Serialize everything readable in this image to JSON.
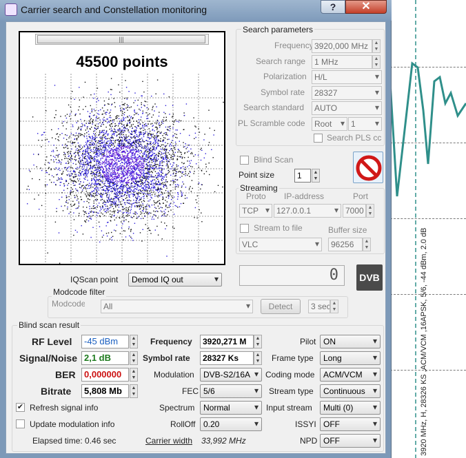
{
  "window": {
    "title": "Carrier search and Constellation monitoring",
    "help_label": "?",
    "close_label": "✕"
  },
  "background_window": {
    "label": "3920 MHz, H, 28326 KS ,ACM/VCM ,16APSK, 5/6, -44 dBm, 2.0 dB"
  },
  "constellation": {
    "points_label": "45500 points",
    "scroll_grip": "|||"
  },
  "search_params": {
    "title": "Search parameters",
    "frequency_label": "Frequency",
    "frequency_value": "3920,000 MHz",
    "search_range_label": "Search range",
    "search_range_value": "1 MHz",
    "polarization_label": "Polarization",
    "polarization_value": "H/L",
    "symbol_rate_label": "Symbol rate",
    "symbol_rate_value": "28327",
    "search_standard_label": "Search standard",
    "search_standard_value": "AUTO",
    "pl_scramble_label": "PL Scramble code",
    "pl_scramble_mode": "Root",
    "pl_scramble_value": "1",
    "search_pls_label": "Search PLS cc"
  },
  "blind_scan": {
    "label": "Blind Scan"
  },
  "point_size": {
    "label": "Point size",
    "value": "1"
  },
  "streaming": {
    "title": "Streaming",
    "proto_label": "Proto",
    "ip_label": "IP-address",
    "port_label": "Port",
    "proto_value": "TCP",
    "ip_value": "127.0.0.1",
    "port_value": "7000",
    "stream_to_file_label": "Stream to file",
    "buffer_size_label": "Buffer size",
    "player_value": "VLC",
    "buffer_size_value": "96256"
  },
  "iqscan": {
    "label": "IQScan point",
    "value": "Demod IQ out"
  },
  "counter_display": {
    "value": "0"
  },
  "dvb_logo": {
    "text": "DVB"
  },
  "modcode_filter": {
    "title": "Modcode filter",
    "modcode_label": "Modcode",
    "modcode_value": "All",
    "detect_label": "Detect",
    "timeout_value": "3 sec"
  },
  "blind_scan_result": {
    "title": "Blind scan result",
    "rf_level_label": "RF Level",
    "rf_level_value": "-45 dBm",
    "sn_label": "Signal/Noise",
    "sn_value": "2,1 dB",
    "ber_label": "BER",
    "ber_value": "0,000000",
    "bitrate_label": "Bitrate",
    "bitrate_value": "5,808 Mb",
    "refresh_label": "Refresh signal info",
    "refresh_checked": true,
    "update_modulation_label": "Update modulation info",
    "elapsed_label": "Elapsed time: 0.46 sec",
    "frequency_label": "Frequency",
    "frequency_value": "3920,271 M",
    "symbol_rate_label": "Symbol rate",
    "symbol_rate_value": "28327 Ks",
    "modulation_label": "Modulation",
    "modulation_value": "DVB-S2/16A",
    "fec_label": "FEC",
    "fec_value": "5/6",
    "spectrum_label": "Spectrum",
    "spectrum_value": "Normal",
    "rolloff_label": "RollOff",
    "rolloff_value": "0.20",
    "carrier_width_label": "Carrier width",
    "carrier_width_value": "33,992 MHz",
    "pilot_label": "Pilot",
    "pilot_value": "ON",
    "frame_type_label": "Frame type",
    "frame_type_value": "Long",
    "coding_mode_label": "Coding mode",
    "coding_mode_value": "ACM/VCM",
    "stream_type_label": "Stream type",
    "stream_type_value": "Continuous",
    "input_stream_label": "Input stream",
    "input_stream_value": "Multi (0)",
    "issyi_label": "ISSYI",
    "issyi_value": "OFF",
    "npd_label": "NPD",
    "npd_value": "OFF"
  },
  "colors": {
    "rf_level": "#1a5fc0",
    "sn": "#1d7a1d",
    "ber": "#cc1111",
    "points": "#2a1bd8",
    "spectrum_line": "#2f8f8a"
  }
}
